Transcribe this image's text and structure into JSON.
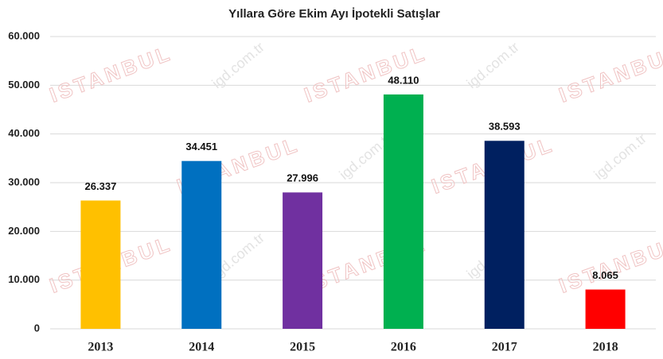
{
  "chart_data": {
    "type": "bar",
    "title": "Yıllara Göre Ekim Ayı İpotekli Satışlar",
    "categories": [
      "2013",
      "2014",
      "2015",
      "2016",
      "2017",
      "2018"
    ],
    "values": [
      26337,
      34451,
      27996,
      48110,
      38593,
      8065
    ],
    "value_labels": [
      "26.337",
      "34.451",
      "27.996",
      "48.110",
      "38.593",
      "8.065"
    ],
    "colors": [
      "#FFC000",
      "#0070C0",
      "#7030A0",
      "#00B050",
      "#002060",
      "#FF0000"
    ],
    "ylim": [
      0,
      60000
    ],
    "yticks": [
      0,
      {
        "value": 10000,
        "label": "10.000"
      },
      {
        "value": 20000,
        "label": "20.000"
      },
      {
        "value": 30000,
        "label": "30.000"
      },
      {
        "value": 40000,
        "label": "40.000"
      },
      {
        "value": 50000,
        "label": "50.000"
      },
      {
        "value": 60000,
        "label": "60.000"
      }
    ],
    "grid": true,
    "watermarks": [
      "ISTANBUL",
      "igd.com.tr"
    ]
  }
}
